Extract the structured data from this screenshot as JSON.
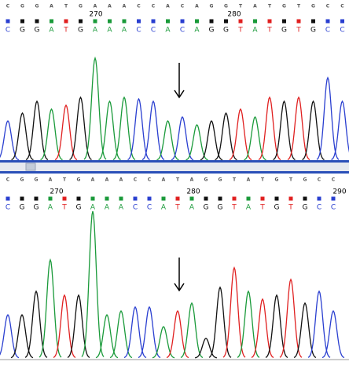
{
  "panels": [
    {
      "positions": [
        "270",
        "280"
      ],
      "bases": [
        "C",
        "G",
        "G",
        "A",
        "T",
        "G",
        "A",
        "A",
        "A",
        "C",
        "C",
        "A",
        "C",
        "A",
        "G",
        "G",
        "T",
        "A",
        "T",
        "G",
        "T",
        "G",
        "C",
        "C"
      ],
      "peak_heights": [
        50,
        60,
        75,
        65,
        70,
        80,
        130,
        75,
        80,
        78,
        75,
        50,
        55,
        45,
        50,
        60,
        65,
        55,
        80,
        75,
        80,
        75,
        105,
        75
      ]
    },
    {
      "positions": [
        "270",
        "280",
        "290"
      ],
      "bases": [
        "C",
        "G",
        "G",
        "A",
        "T",
        "G",
        "A",
        "A",
        "A",
        "C",
        "C",
        "A",
        "T",
        "A",
        "G",
        "G",
        "T",
        "A",
        "T",
        "G",
        "T",
        "G",
        "C",
        "C"
      ],
      "peak_heights": [
        55,
        55,
        85,
        125,
        80,
        80,
        187,
        55,
        60,
        65,
        65,
        40,
        60,
        70,
        25,
        90,
        115,
        85,
        75,
        80,
        100,
        70,
        85,
        60
      ]
    }
  ]
}
